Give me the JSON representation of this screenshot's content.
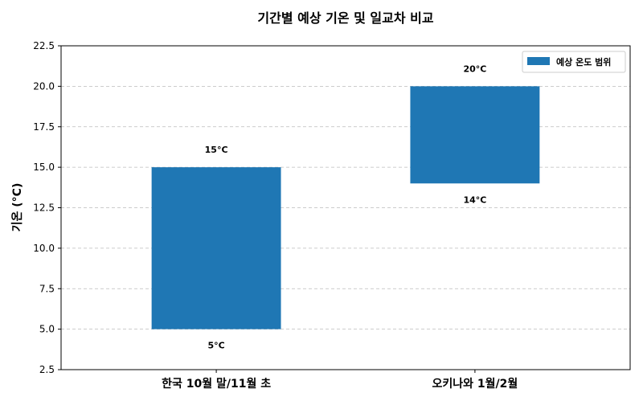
{
  "chart_data": {
    "type": "bar",
    "title": "기간별 예상 기온 및 일교차 비교",
    "xlabel": "",
    "ylabel": "기온 (°C)",
    "categories": [
      "한국 10월 말/11월 초",
      "오키나와 1월/2월"
    ],
    "series": [
      {
        "name": "예상 온도 범위",
        "low": [
          5,
          14
        ],
        "high": [
          15,
          20
        ],
        "low_labels": [
          "5°C",
          "14°C"
        ],
        "high_labels": [
          "15°C",
          "20°C"
        ],
        "color": "#1f77b4"
      }
    ],
    "ylim": [
      2.5,
      22.5
    ],
    "xlim": [
      -0.6,
      1.6
    ],
    "bar_width": 0.5,
    "yticks": [
      2.5,
      5.0,
      7.5,
      10.0,
      12.5,
      15.0,
      17.5,
      20.0,
      22.5
    ],
    "ytick_labels": [
      "2.5",
      "5.0",
      "7.5",
      "10.0",
      "12.5",
      "15.0",
      "17.5",
      "20.0",
      "22.5"
    ],
    "grid": "y-dashed",
    "legend": "top-right"
  }
}
